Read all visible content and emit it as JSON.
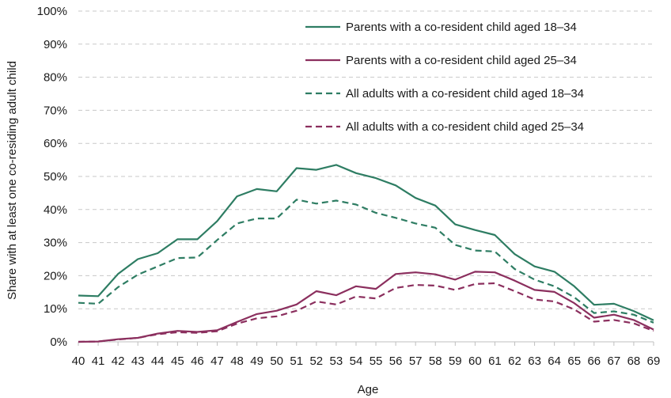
{
  "chart_data": {
    "type": "line",
    "title": "",
    "xlabel": "Age",
    "ylabel": "Share with at least one co-residing adult child",
    "x": [
      40,
      41,
      42,
      43,
      44,
      45,
      46,
      47,
      48,
      49,
      50,
      51,
      52,
      53,
      54,
      55,
      56,
      57,
      58,
      59,
      60,
      61,
      62,
      63,
      64,
      65,
      66,
      67,
      68,
      69
    ],
    "ylim": [
      0,
      100
    ],
    "y_ticks": [
      "0%",
      "10%",
      "20%",
      "30%",
      "40%",
      "50%",
      "60%",
      "70%",
      "80%",
      "90%",
      "100%"
    ],
    "grid": true,
    "legend_position": "top-right",
    "series": [
      {
        "name": "Parents with a co-resident child aged 18–34",
        "color": "#2e7d63",
        "style": "solid",
        "values": [
          14,
          13.8,
          20.5,
          25,
          26.8,
          31,
          31,
          36.5,
          44,
          46.2,
          45.5,
          52.5,
          52,
          53.5,
          51,
          49.5,
          47.3,
          43.5,
          41.2,
          35.5,
          33.8,
          32.3,
          26.5,
          22.8,
          21.2,
          16.8,
          11.2,
          11.5,
          9.3,
          6.5
        ]
      },
      {
        "name": "Parents with a co-resident child aged 25–34",
        "color": "#8b2f5e",
        "style": "solid",
        "values": [
          0,
          0.1,
          0.8,
          1.2,
          2.5,
          3.3,
          3,
          3.5,
          6,
          8.4,
          9.4,
          11.3,
          15.3,
          14.1,
          16.8,
          16,
          20.5,
          21,
          20.4,
          18.8,
          21.2,
          21,
          18.5,
          15.7,
          15.1,
          11.7,
          7.3,
          8.2,
          6.6,
          3.7
        ]
      },
      {
        "name": "All adults with a co-resident child aged 18–34",
        "color": "#2e7d63",
        "style": "dashed",
        "values": [
          11.8,
          11.5,
          16.5,
          20.3,
          22.8,
          25.3,
          25.5,
          30.8,
          35.8,
          37.3,
          37.3,
          43,
          41.8,
          42.7,
          41.5,
          39,
          37.5,
          35.8,
          34.5,
          29.3,
          27.6,
          27.3,
          22,
          18.8,
          16.8,
          13.5,
          8.7,
          9.2,
          8.2,
          5.8
        ]
      },
      {
        "name": "All adults with a co-resident child aged 25–34",
        "color": "#8b2f5e",
        "style": "dashed",
        "values": [
          0,
          0.1,
          0.7,
          1.2,
          2.3,
          2.9,
          2.7,
          3.2,
          5.5,
          7.1,
          7.7,
          9.4,
          12.2,
          11.3,
          13.7,
          13.1,
          16.3,
          17.2,
          17,
          15.7,
          17.5,
          17.7,
          15.3,
          12.8,
          12.2,
          9.8,
          6.1,
          6.6,
          5.6,
          3.3
        ]
      }
    ]
  }
}
